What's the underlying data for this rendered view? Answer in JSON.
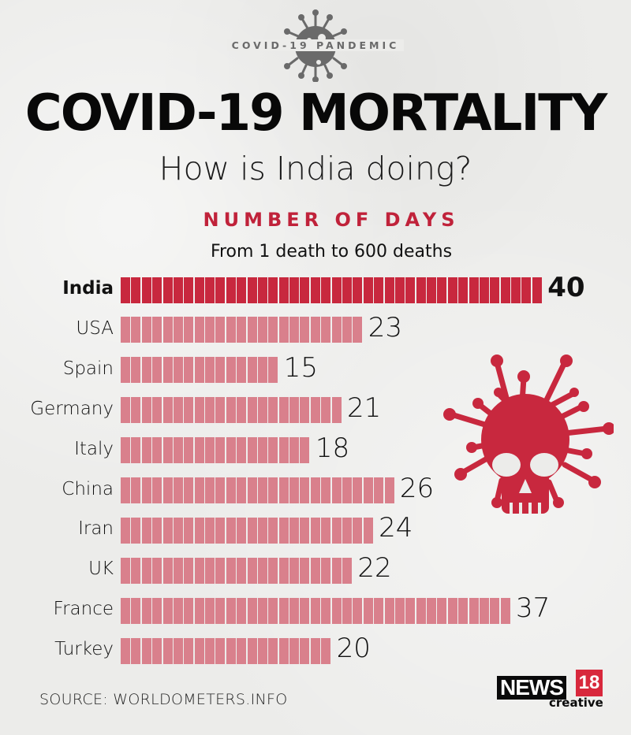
{
  "header": {
    "emblem_text": "COVID-19 PANDEMIC",
    "title": "COVID-19 MORTALITY",
    "subtitle": "How is India doing?"
  },
  "chart_data": {
    "type": "bar",
    "orientation": "horizontal",
    "title": "NUMBER OF DAYS",
    "subtitle": "From 1 death to 600 deaths",
    "xlabel": "",
    "ylabel": "",
    "unit": "days",
    "categories": [
      "India",
      "USA",
      "Spain",
      "Germany",
      "Italy",
      "China",
      "Iran",
      "UK",
      "France",
      "Turkey"
    ],
    "values": [
      40,
      23,
      15,
      21,
      18,
      26,
      24,
      22,
      37,
      20
    ],
    "value_labels": [
      "40",
      "23",
      "15",
      "21",
      "18",
      "26",
      "24",
      "22",
      "37",
      "20"
    ],
    "highlight": "India",
    "segment_unit": 1,
    "xlim": [
      0,
      40
    ],
    "grid": false,
    "legend": "none",
    "colors": {
      "highlight": "#c8283e",
      "default": "#d9808c",
      "accent_heading": "#c0223a"
    }
  },
  "footer": {
    "source": "SOURCE: WORLDOMETERS.INFO",
    "logo": {
      "news": "NEWS",
      "number": "18",
      "tagline": "creative"
    }
  },
  "icons": {
    "emblem": "virus-icon",
    "decoration": "virus-skull-icon"
  }
}
